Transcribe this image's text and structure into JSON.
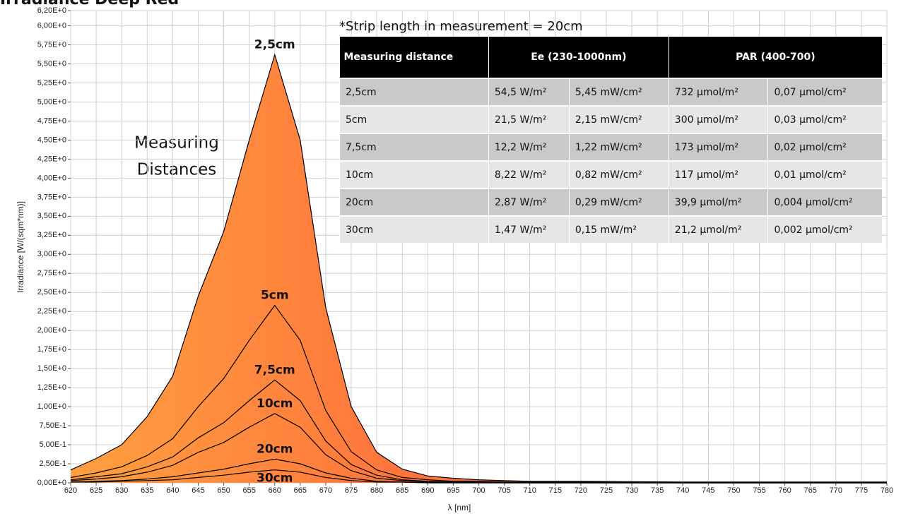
{
  "chart_data": {
    "type": "area",
    "title": "Irradiance Deep Red",
    "xlabel": "λ [nm]",
    "ylabel": "Irradiance [W/(sqm*nm)]",
    "annotations": [
      "Measuring",
      "Distances"
    ],
    "fill_gradient": [
      "#ffa040",
      "#ff3535"
    ],
    "grid": true,
    "xlim": [
      620,
      780
    ],
    "xticks": [
      620,
      625,
      630,
      635,
      640,
      645,
      650,
      655,
      660,
      665,
      670,
      675,
      680,
      685,
      690,
      695,
      700,
      705,
      710,
      715,
      720,
      725,
      730,
      735,
      740,
      745,
      750,
      755,
      760,
      765,
      770,
      775,
      780
    ],
    "ylim": [
      0,
      6.2
    ],
    "yticks": [
      {
        "value": 0,
        "label": "0,00E+0"
      },
      {
        "value": 0.25,
        "label": "2,50E-1"
      },
      {
        "value": 0.5,
        "label": "5,00E-1"
      },
      {
        "value": 0.75,
        "label": "7,50E-1"
      },
      {
        "value": 1,
        "label": "1,00E+0"
      },
      {
        "value": 1.25,
        "label": "1,25E+0"
      },
      {
        "value": 1.5,
        "label": "1,50E+0"
      },
      {
        "value": 1.75,
        "label": "1,75E+0"
      },
      {
        "value": 2,
        "label": "2,00E+0"
      },
      {
        "value": 2.25,
        "label": "2,25E+0"
      },
      {
        "value": 2.5,
        "label": "2,50E+0"
      },
      {
        "value": 2.75,
        "label": "2,75E+0"
      },
      {
        "value": 3,
        "label": "3,00E+0"
      },
      {
        "value": 3.25,
        "label": "3,25E+0"
      },
      {
        "value": 3.5,
        "label": "3,50E+0"
      },
      {
        "value": 3.75,
        "label": "3,75E+0"
      },
      {
        "value": 4,
        "label": "4,00E+0"
      },
      {
        "value": 4.25,
        "label": "4,25E+0"
      },
      {
        "value": 4.5,
        "label": "4,50E+0"
      },
      {
        "value": 4.75,
        "label": "4,75E+0"
      },
      {
        "value": 5,
        "label": "5,00E+0"
      },
      {
        "value": 5.25,
        "label": "5,25E+0"
      },
      {
        "value": 5.5,
        "label": "5,50E+0"
      },
      {
        "value": 5.75,
        "label": "5,75E+0"
      },
      {
        "value": 6,
        "label": "6,00E+0"
      },
      {
        "value": 6.2,
        "label": "6,20E+0"
      }
    ],
    "x": [
      620,
      625,
      630,
      635,
      640,
      645,
      650,
      655,
      660,
      665,
      670,
      675,
      680,
      685,
      690,
      695,
      700,
      705,
      710,
      720,
      740,
      760,
      780
    ],
    "series": [
      {
        "name": "2,5cm",
        "color": "#000000",
        "values": [
          0.17,
          0.32,
          0.5,
          0.87,
          1.4,
          2.45,
          3.3,
          4.5,
          5.62,
          4.5,
          2.3,
          1.0,
          0.4,
          0.18,
          0.09,
          0.06,
          0.04,
          0.03,
          0.02,
          0.02,
          0.01,
          0.01,
          0.01
        ]
      },
      {
        "name": "5cm",
        "color": "#000000",
        "values": [
          0.07,
          0.13,
          0.21,
          0.36,
          0.58,
          1.0,
          1.37,
          1.87,
          2.33,
          1.87,
          0.95,
          0.41,
          0.17,
          0.07,
          0.04,
          0.02,
          0.02,
          0.01,
          0.01,
          0.01,
          0,
          0,
          0
        ]
      },
      {
        "name": "7,5cm",
        "color": "#000000",
        "values": [
          0.04,
          0.08,
          0.12,
          0.21,
          0.34,
          0.59,
          0.79,
          1.08,
          1.35,
          1.08,
          0.55,
          0.24,
          0.1,
          0.04,
          0.02,
          0.01,
          0.01,
          0.01,
          0,
          0,
          0,
          0,
          0
        ]
      },
      {
        "name": "10cm",
        "color": "#000000",
        "values": [
          0.03,
          0.05,
          0.08,
          0.14,
          0.23,
          0.4,
          0.53,
          0.73,
          0.91,
          0.73,
          0.37,
          0.16,
          0.06,
          0.03,
          0.01,
          0.01,
          0.01,
          0,
          0,
          0,
          0,
          0,
          0
        ]
      },
      {
        "name": "20cm",
        "color": "#000000",
        "values": [
          0.01,
          0.02,
          0.03,
          0.05,
          0.08,
          0.13,
          0.18,
          0.25,
          0.31,
          0.25,
          0.13,
          0.06,
          0.02,
          0.01,
          0,
          0,
          0,
          0,
          0,
          0,
          0,
          0,
          0
        ]
      },
      {
        "name": "30cm",
        "color": "#000000",
        "values": [
          0.01,
          0.01,
          0.02,
          0.03,
          0.04,
          0.07,
          0.1,
          0.14,
          0.17,
          0.14,
          0.07,
          0.03,
          0.01,
          0.01,
          0,
          0,
          0,
          0,
          0,
          0,
          0,
          0,
          0
        ]
      }
    ],
    "table": {
      "note": "*Strip length in measurement = 20cm",
      "headers": [
        "Measuring distance",
        "Ee  (230-1000nm)",
        "PAR (400-700)"
      ],
      "rows": [
        [
          "2,5cm",
          "54,5 W/m²",
          "5,45 mW/cm²",
          "732 µmol/m²",
          "0,07 µmol/cm²"
        ],
        [
          "5cm",
          "21,5 W/m²",
          "2,15 mW/cm²",
          "300 µmol/m²",
          "0,03 µmol/cm²"
        ],
        [
          "7,5cm",
          "12,2 W/m²",
          "1,22 mW/cm²",
          "173 µmol/m²",
          "0,02 µmol/cm²"
        ],
        [
          "10cm",
          "8,22 W/m²",
          "0,82 mW/cm²",
          "117 µmol/m²",
          "0,01 µmol/cm²"
        ],
        [
          "20cm",
          "2,87 W/m²",
          "0,29 mW/cm²",
          "39,9 µmol/m²",
          "0,004 µmol/cm²"
        ],
        [
          "30cm",
          "1,47 W/m²",
          "0,15 mW/m²",
          "21,2 µmol/m²",
          "0,002 µmol/cm²"
        ]
      ]
    }
  }
}
